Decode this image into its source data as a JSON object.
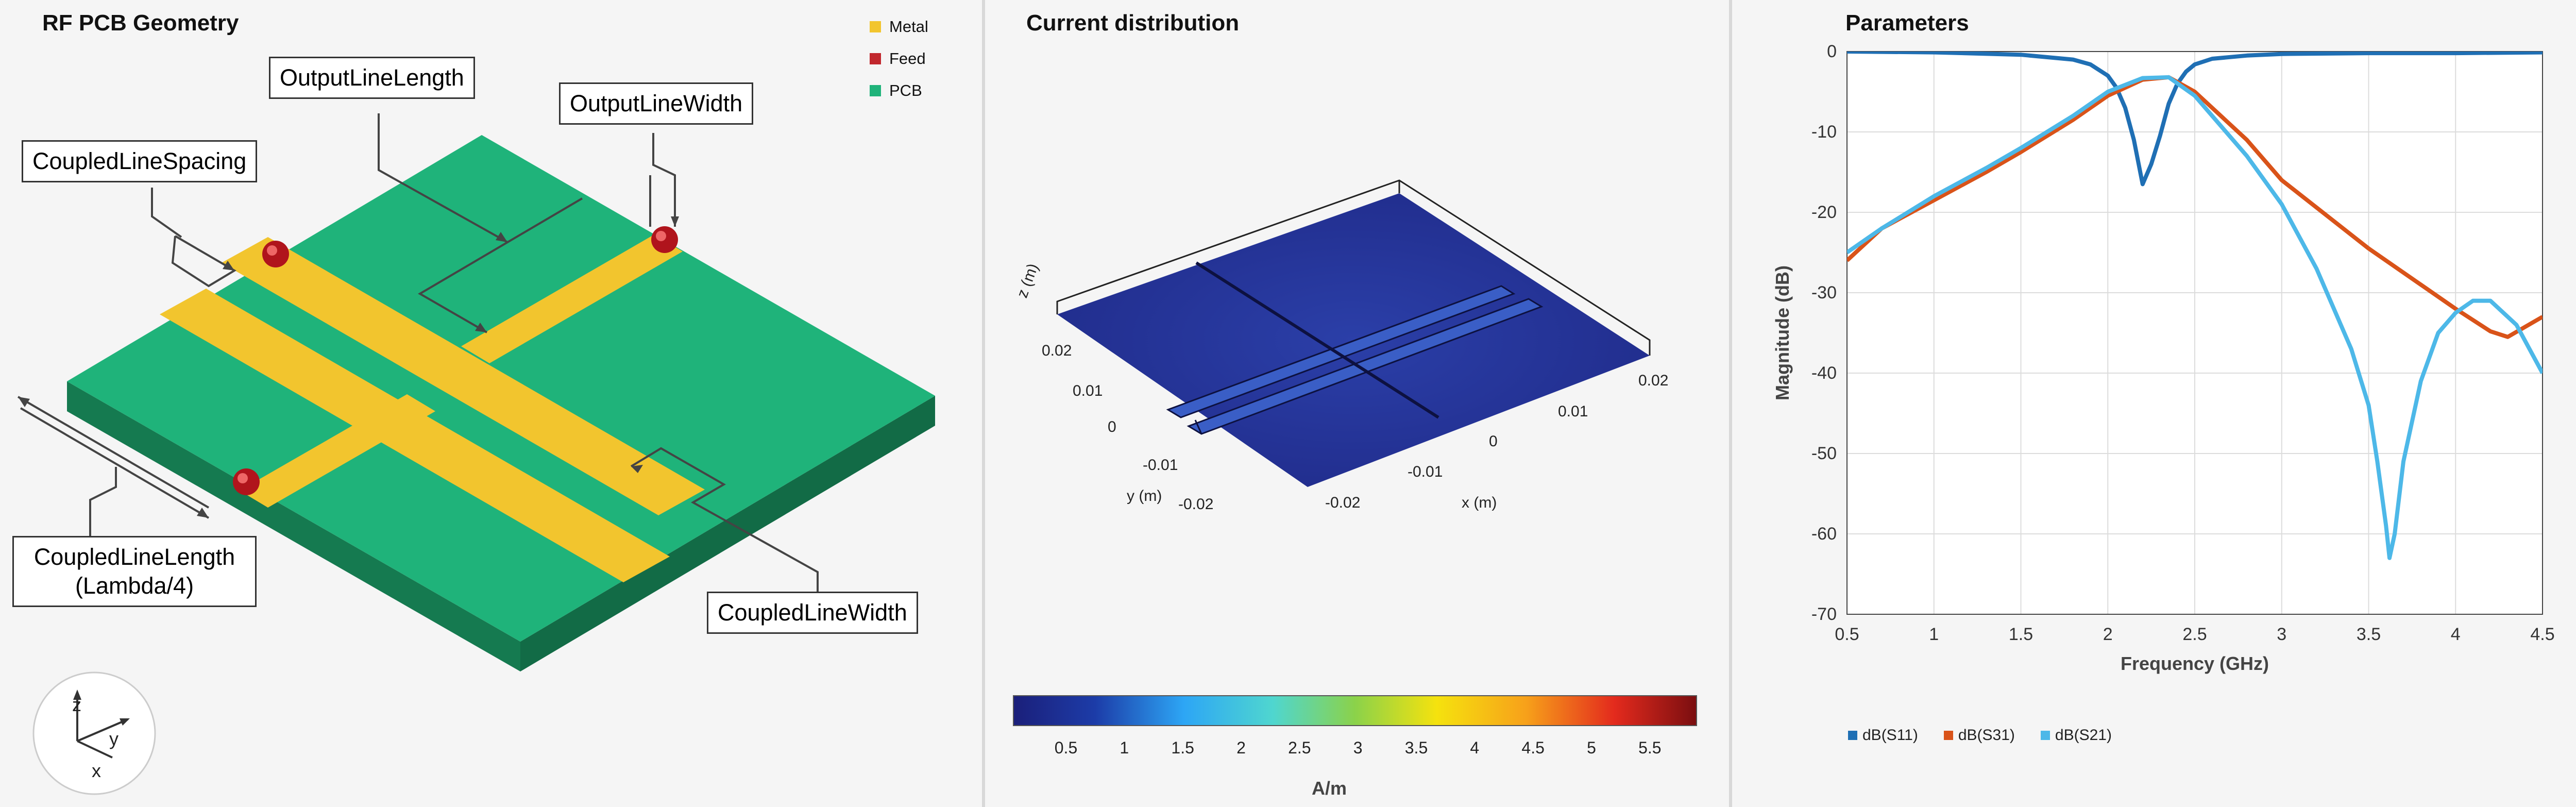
{
  "panels": {
    "geometry": {
      "title": "RF PCB Geometry",
      "legend": [
        {
          "label": "Metal",
          "color": "#f2c52e"
        },
        {
          "label": "Feed",
          "color": "#c1272d"
        },
        {
          "label": "PCB",
          "color": "#1fb37a"
        }
      ],
      "callouts": {
        "output_line_length": "OutputLineLength",
        "output_line_width": "OutputLineWidth",
        "coupled_line_spacing": "CoupledLineSpacing",
        "coupled_line_length_1": "CoupledLineLength",
        "coupled_line_length_2": "(Lambda/4)",
        "coupled_line_width": "CoupledLineWidth"
      },
      "axes_triad": {
        "x": "x",
        "y": "y",
        "z": "z"
      }
    },
    "current": {
      "title": "Current distribution",
      "z_label": "z (m)",
      "z_tick": "0.02",
      "y_label": "y (m)",
      "y_ticks": [
        "0.01",
        "0",
        "-0.01",
        "-0.02"
      ],
      "x_label": "x (m)",
      "x_ticks": [
        "0.02",
        "0.01",
        "0",
        "-0.01",
        "-0.02"
      ],
      "colorbar_ticks": [
        "0.5",
        "1",
        "1.5",
        "2",
        "2.5",
        "3",
        "3.5",
        "4",
        "4.5",
        "5",
        "5.5"
      ],
      "colorbar_unit": "A/m"
    },
    "sparams": {
      "title": "Parameters",
      "legend": [
        "dB(S11)",
        "dB(S31)",
        "dB(S21)"
      ]
    }
  },
  "chart_data": {
    "type": "line",
    "title": "Parameters",
    "xlabel": "Frequency (GHz)",
    "ylabel": "Magnitude (dB)",
    "xlim": [
      0.5,
      4.5
    ],
    "ylim": [
      -70,
      0
    ],
    "xticks": [
      0.5,
      1,
      1.5,
      2,
      2.5,
      3,
      3.5,
      4,
      4.5
    ],
    "yticks": [
      0,
      -10,
      -20,
      -30,
      -40,
      -50,
      -60,
      -70
    ],
    "grid": true,
    "legend_position": "bottom",
    "series": [
      {
        "name": "dB(S11)",
        "color": "#1f6fb4",
        "x": [
          0.5,
          1.0,
          1.5,
          1.8,
          1.9,
          2.0,
          2.05,
          2.1,
          2.15,
          2.2,
          2.25,
          2.3,
          2.35,
          2.4,
          2.45,
          2.5,
          2.6,
          2.8,
          3.0,
          3.5,
          4.0,
          4.5
        ],
        "y": [
          0,
          -0.1,
          -0.4,
          -1.0,
          -1.6,
          -3.0,
          -4.5,
          -7.0,
          -11.0,
          -16.5,
          -14.0,
          -10.5,
          -6.5,
          -4.0,
          -2.5,
          -1.6,
          -0.9,
          -0.5,
          -0.3,
          -0.2,
          -0.2,
          -0.1
        ]
      },
      {
        "name": "dB(S31)",
        "color": "#d95319",
        "x": [
          0.5,
          0.7,
          1.0,
          1.3,
          1.5,
          1.8,
          2.0,
          2.2,
          2.35,
          2.5,
          2.8,
          3.0,
          3.5,
          4.0,
          4.2,
          4.3,
          4.5
        ],
        "y": [
          -26,
          -22,
          -18.5,
          -15,
          -12.5,
          -8.5,
          -5.5,
          -3.5,
          -3.2,
          -5,
          -11,
          -16,
          -24.5,
          -32,
          -34.8,
          -35.5,
          -33
        ]
      },
      {
        "name": "dB(S21)",
        "color": "#4db8e8",
        "x": [
          0.5,
          0.7,
          1.0,
          1.3,
          1.5,
          1.8,
          2.0,
          2.2,
          2.35,
          2.5,
          2.8,
          3.0,
          3.2,
          3.4,
          3.5,
          3.55,
          3.6,
          3.62,
          3.65,
          3.7,
          3.8,
          3.9,
          4.0,
          4.1,
          4.2,
          4.35,
          4.5
        ],
        "y": [
          -25,
          -22,
          -18,
          -14.5,
          -12,
          -8,
          -5,
          -3.3,
          -3.2,
          -5.5,
          -13,
          -19,
          -27,
          -37,
          -44,
          -51,
          -59,
          -63,
          -60,
          -51,
          -41,
          -35,
          -32.5,
          -31,
          -31,
          -34,
          -40
        ]
      }
    ]
  }
}
